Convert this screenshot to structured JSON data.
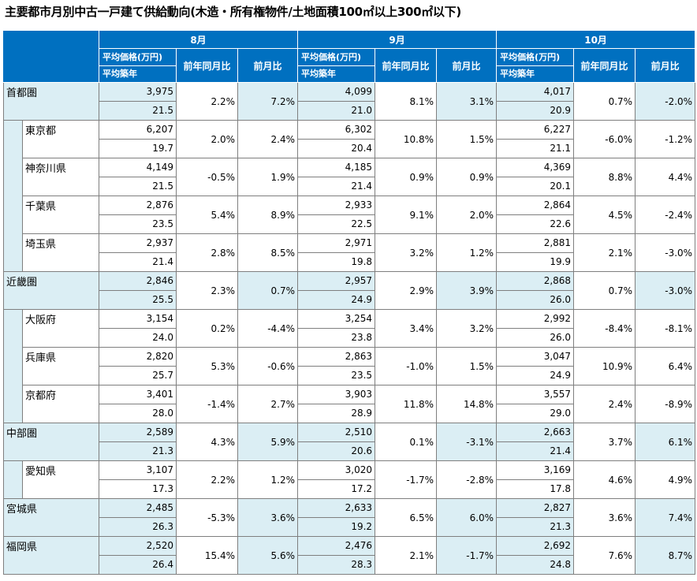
{
  "title": "主要都市月別中古一戸建て供給動向(木造・所有権物件/土地面積100㎡以上300㎡以下)",
  "colors": {
    "header_bg": "#0070c0",
    "header_text": "#ffffff",
    "region_bg": "#dbeef4",
    "border": "#7f7f7f"
  },
  "months": [
    "8月",
    "9月",
    "10月"
  ],
  "col_price": "平均価格(万円)",
  "col_age": "平均築年",
  "col_yoy": "前年同月比",
  "col_mom": "前月比",
  "rows": [
    {
      "name": "首都圏",
      "region": true,
      "m": [
        {
          "price": "3,975",
          "age": "21.5",
          "yoy": "2.2%",
          "mom": "7.2%"
        },
        {
          "price": "4,099",
          "age": "21.0",
          "yoy": "8.1%",
          "mom": "3.1%"
        },
        {
          "price": "4,017",
          "age": "20.9",
          "yoy": "0.7%",
          "mom": "-2.0%"
        }
      ]
    },
    {
      "name": "東京都",
      "region": false,
      "m": [
        {
          "price": "6,207",
          "age": "19.7",
          "yoy": "2.0%",
          "mom": "2.4%"
        },
        {
          "price": "6,302",
          "age": "20.4",
          "yoy": "10.8%",
          "mom": "1.5%"
        },
        {
          "price": "6,227",
          "age": "21.1",
          "yoy": "-6.0%",
          "mom": "-1.2%"
        }
      ]
    },
    {
      "name": "神奈川県",
      "region": false,
      "m": [
        {
          "price": "4,149",
          "age": "21.5",
          "yoy": "-0.5%",
          "mom": "1.9%"
        },
        {
          "price": "4,185",
          "age": "21.4",
          "yoy": "0.9%",
          "mom": "0.9%"
        },
        {
          "price": "4,369",
          "age": "20.1",
          "yoy": "8.8%",
          "mom": "4.4%"
        }
      ]
    },
    {
      "name": "千葉県",
      "region": false,
      "m": [
        {
          "price": "2,876",
          "age": "23.5",
          "yoy": "5.4%",
          "mom": "8.9%"
        },
        {
          "price": "2,933",
          "age": "22.5",
          "yoy": "9.1%",
          "mom": "2.0%"
        },
        {
          "price": "2,864",
          "age": "22.6",
          "yoy": "4.5%",
          "mom": "-2.4%"
        }
      ]
    },
    {
      "name": "埼玉県",
      "region": false,
      "m": [
        {
          "price": "2,937",
          "age": "21.4",
          "yoy": "2.8%",
          "mom": "8.5%"
        },
        {
          "price": "2,971",
          "age": "19.8",
          "yoy": "3.2%",
          "mom": "1.2%"
        },
        {
          "price": "2,881",
          "age": "19.9",
          "yoy": "2.1%",
          "mom": "-3.0%"
        }
      ]
    },
    {
      "name": "近畿圏",
      "region": true,
      "m": [
        {
          "price": "2,846",
          "age": "25.5",
          "yoy": "2.3%",
          "mom": "0.7%"
        },
        {
          "price": "2,957",
          "age": "24.9",
          "yoy": "2.9%",
          "mom": "3.9%"
        },
        {
          "price": "2,868",
          "age": "26.0",
          "yoy": "0.7%",
          "mom": "-3.0%"
        }
      ]
    },
    {
      "name": "大阪府",
      "region": false,
      "m": [
        {
          "price": "3,154",
          "age": "24.0",
          "yoy": "0.2%",
          "mom": "-4.4%"
        },
        {
          "price": "3,254",
          "age": "23.8",
          "yoy": "3.4%",
          "mom": "3.2%"
        },
        {
          "price": "2,992",
          "age": "26.0",
          "yoy": "-8.4%",
          "mom": "-8.1%"
        }
      ]
    },
    {
      "name": "兵庫県",
      "region": false,
      "m": [
        {
          "price": "2,820",
          "age": "25.7",
          "yoy": "5.3%",
          "mom": "-0.6%"
        },
        {
          "price": "2,863",
          "age": "23.5",
          "yoy": "-1.0%",
          "mom": "1.5%"
        },
        {
          "price": "3,047",
          "age": "24.9",
          "yoy": "10.9%",
          "mom": "6.4%"
        }
      ]
    },
    {
      "name": "京都府",
      "region": false,
      "m": [
        {
          "price": "3,401",
          "age": "28.0",
          "yoy": "-1.4%",
          "mom": "2.7%"
        },
        {
          "price": "3,903",
          "age": "28.9",
          "yoy": "11.8%",
          "mom": "14.8%"
        },
        {
          "price": "3,557",
          "age": "29.0",
          "yoy": "2.4%",
          "mom": "-8.9%"
        }
      ]
    },
    {
      "name": "中部圏",
      "region": true,
      "m": [
        {
          "price": "2,589",
          "age": "21.3",
          "yoy": "4.3%",
          "mom": "5.9%"
        },
        {
          "price": "2,510",
          "age": "20.6",
          "yoy": "0.1%",
          "mom": "-3.1%"
        },
        {
          "price": "2,663",
          "age": "21.4",
          "yoy": "3.7%",
          "mom": "6.1%"
        }
      ]
    },
    {
      "name": "愛知県",
      "region": false,
      "m": [
        {
          "price": "3,107",
          "age": "17.3",
          "yoy": "2.2%",
          "mom": "1.2%"
        },
        {
          "price": "3,020",
          "age": "17.2",
          "yoy": "-1.7%",
          "mom": "-2.8%"
        },
        {
          "price": "3,169",
          "age": "17.8",
          "yoy": "4.6%",
          "mom": "4.9%"
        }
      ]
    },
    {
      "name": "宮城県",
      "region": true,
      "m": [
        {
          "price": "2,485",
          "age": "26.3",
          "yoy": "-5.3%",
          "mom": "3.6%"
        },
        {
          "price": "2,633",
          "age": "19.2",
          "yoy": "6.5%",
          "mom": "6.0%"
        },
        {
          "price": "2,827",
          "age": "21.3",
          "yoy": "3.6%",
          "mom": "7.4%"
        }
      ]
    },
    {
      "name": "福岡県",
      "region": true,
      "m": [
        {
          "price": "2,520",
          "age": "26.4",
          "yoy": "15.4%",
          "mom": "5.6%"
        },
        {
          "price": "2,476",
          "age": "28.3",
          "yoy": "2.1%",
          "mom": "-1.7%"
        },
        {
          "price": "2,692",
          "age": "24.8",
          "yoy": "7.6%",
          "mom": "8.7%"
        }
      ]
    }
  ]
}
